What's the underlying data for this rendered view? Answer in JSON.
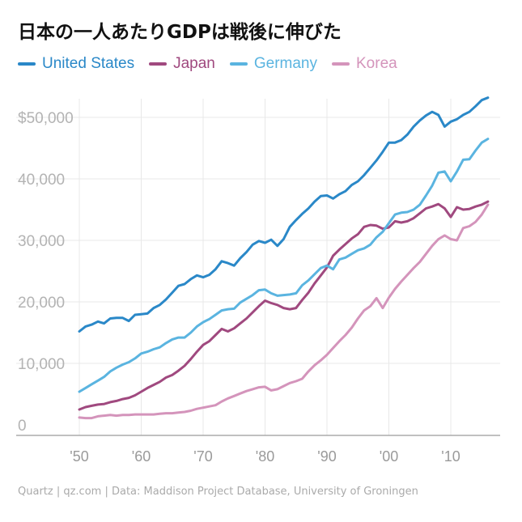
{
  "title": "日本の一人あたりGDPは戦後に伸びた",
  "footer": "Quartz | qz.com | Data: Maddison Project Database, University of Groningen",
  "chart_data": {
    "type": "line",
    "ylim": [
      0,
      55000
    ],
    "xlim": [
      1948,
      2018
    ],
    "yticks": [
      {
        "value": 0,
        "label": "0"
      },
      {
        "value": 10000,
        "label": "10,000"
      },
      {
        "value": 20000,
        "label": "20,000"
      },
      {
        "value": 30000,
        "label": "30,000"
      },
      {
        "value": 40000,
        "label": "40,000"
      },
      {
        "value": 50000,
        "label": "$50,000"
      }
    ],
    "xticks": [
      {
        "value": 1950,
        "label": "'50"
      },
      {
        "value": 1960,
        "label": "'60"
      },
      {
        "value": 1970,
        "label": "'70"
      },
      {
        "value": 1980,
        "label": "'80"
      },
      {
        "value": 1990,
        "label": "'90"
      },
      {
        "value": 2000,
        "label": "'00"
      },
      {
        "value": 2010,
        "label": "'10"
      }
    ],
    "grid": true,
    "legend_position": "top-left",
    "series": [
      {
        "name": "United States",
        "color": "#2a88c8",
        "points": [
          [
            1950,
            15200
          ],
          [
            1951,
            16000
          ],
          [
            1952,
            16300
          ],
          [
            1953,
            16800
          ],
          [
            1954,
            16500
          ],
          [
            1955,
            17300
          ],
          [
            1956,
            17400
          ],
          [
            1957,
            17400
          ],
          [
            1958,
            16900
          ],
          [
            1959,
            17900
          ],
          [
            1960,
            18000
          ],
          [
            1961,
            18100
          ],
          [
            1962,
            19000
          ],
          [
            1963,
            19500
          ],
          [
            1964,
            20400
          ],
          [
            1965,
            21500
          ],
          [
            1966,
            22600
          ],
          [
            1967,
            22900
          ],
          [
            1968,
            23700
          ],
          [
            1969,
            24300
          ],
          [
            1970,
            24000
          ],
          [
            1971,
            24400
          ],
          [
            1972,
            25300
          ],
          [
            1973,
            26600
          ],
          [
            1974,
            26300
          ],
          [
            1975,
            25900
          ],
          [
            1976,
            27100
          ],
          [
            1977,
            28100
          ],
          [
            1978,
            29300
          ],
          [
            1979,
            29900
          ],
          [
            1980,
            29600
          ],
          [
            1981,
            30100
          ],
          [
            1982,
            29100
          ],
          [
            1983,
            30200
          ],
          [
            1984,
            32200
          ],
          [
            1985,
            33300
          ],
          [
            1986,
            34300
          ],
          [
            1987,
            35200
          ],
          [
            1988,
            36300
          ],
          [
            1989,
            37200
          ],
          [
            1990,
            37300
          ],
          [
            1991,
            36800
          ],
          [
            1992,
            37500
          ],
          [
            1993,
            38000
          ],
          [
            1994,
            39000
          ],
          [
            1995,
            39600
          ],
          [
            1996,
            40600
          ],
          [
            1997,
            41800
          ],
          [
            1998,
            43000
          ],
          [
            1999,
            44400
          ],
          [
            2000,
            45900
          ],
          [
            2001,
            45900
          ],
          [
            2002,
            46300
          ],
          [
            2003,
            47200
          ],
          [
            2004,
            48500
          ],
          [
            2005,
            49500
          ],
          [
            2006,
            50300
          ],
          [
            2007,
            50900
          ],
          [
            2008,
            50400
          ],
          [
            2009,
            48500
          ],
          [
            2010,
            49300
          ],
          [
            2011,
            49700
          ],
          [
            2012,
            50400
          ],
          [
            2013,
            50900
          ],
          [
            2014,
            51800
          ],
          [
            2015,
            52800
          ],
          [
            2016,
            53200
          ]
        ]
      },
      {
        "name": "Japan",
        "color": "#a0497f",
        "points": [
          [
            1950,
            2500
          ],
          [
            1951,
            2900
          ],
          [
            1952,
            3100
          ],
          [
            1953,
            3300
          ],
          [
            1954,
            3400
          ],
          [
            1955,
            3700
          ],
          [
            1956,
            3900
          ],
          [
            1957,
            4200
          ],
          [
            1958,
            4400
          ],
          [
            1959,
            4800
          ],
          [
            1960,
            5400
          ],
          [
            1961,
            6000
          ],
          [
            1962,
            6500
          ],
          [
            1963,
            7000
          ],
          [
            1964,
            7700
          ],
          [
            1965,
            8100
          ],
          [
            1966,
            8800
          ],
          [
            1967,
            9600
          ],
          [
            1968,
            10700
          ],
          [
            1969,
            11900
          ],
          [
            1970,
            13000
          ],
          [
            1971,
            13600
          ],
          [
            1972,
            14600
          ],
          [
            1973,
            15600
          ],
          [
            1974,
            15200
          ],
          [
            1975,
            15700
          ],
          [
            1976,
            16500
          ],
          [
            1977,
            17300
          ],
          [
            1978,
            18300
          ],
          [
            1979,
            19300
          ],
          [
            1980,
            20200
          ],
          [
            1981,
            19800
          ],
          [
            1982,
            19500
          ],
          [
            1983,
            19000
          ],
          [
            1984,
            18800
          ],
          [
            1985,
            19000
          ],
          [
            1986,
            20300
          ],
          [
            1987,
            21500
          ],
          [
            1988,
            23000
          ],
          [
            1989,
            24300
          ],
          [
            1990,
            25600
          ],
          [
            1991,
            27500
          ],
          [
            1992,
            28500
          ],
          [
            1993,
            29400
          ],
          [
            1994,
            30300
          ],
          [
            1995,
            31000
          ],
          [
            1996,
            32200
          ],
          [
            1997,
            32500
          ],
          [
            1998,
            32400
          ],
          [
            1999,
            31900
          ],
          [
            2000,
            32100
          ],
          [
            2001,
            33100
          ],
          [
            2002,
            32900
          ],
          [
            2003,
            33100
          ],
          [
            2004,
            33600
          ],
          [
            2005,
            34400
          ],
          [
            2006,
            35200
          ],
          [
            2007,
            35500
          ],
          [
            2008,
            35900
          ],
          [
            2009,
            35200
          ],
          [
            2010,
            33800
          ],
          [
            2011,
            35400
          ],
          [
            2012,
            35000
          ],
          [
            2013,
            35100
          ],
          [
            2014,
            35500
          ],
          [
            2015,
            35800
          ],
          [
            2016,
            36300
          ]
        ]
      },
      {
        "name": "Germany",
        "color": "#5ab4e0",
        "points": [
          [
            1950,
            5400
          ],
          [
            1951,
            6000
          ],
          [
            1952,
            6600
          ],
          [
            1953,
            7200
          ],
          [
            1954,
            7800
          ],
          [
            1955,
            8700
          ],
          [
            1956,
            9300
          ],
          [
            1957,
            9800
          ],
          [
            1958,
            10200
          ],
          [
            1959,
            10800
          ],
          [
            1960,
            11600
          ],
          [
            1961,
            11900
          ],
          [
            1962,
            12300
          ],
          [
            1963,
            12600
          ],
          [
            1964,
            13300
          ],
          [
            1965,
            13900
          ],
          [
            1966,
            14200
          ],
          [
            1967,
            14200
          ],
          [
            1968,
            15000
          ],
          [
            1969,
            16000
          ],
          [
            1970,
            16700
          ],
          [
            1971,
            17200
          ],
          [
            1972,
            17900
          ],
          [
            1973,
            18600
          ],
          [
            1974,
            18800
          ],
          [
            1975,
            18900
          ],
          [
            1976,
            19900
          ],
          [
            1977,
            20500
          ],
          [
            1978,
            21100
          ],
          [
            1979,
            21900
          ],
          [
            1980,
            22000
          ],
          [
            1981,
            21400
          ],
          [
            1982,
            21000
          ],
          [
            1983,
            21100
          ],
          [
            1984,
            21200
          ],
          [
            1985,
            21400
          ],
          [
            1986,
            22700
          ],
          [
            1987,
            23500
          ],
          [
            1988,
            24500
          ],
          [
            1989,
            25500
          ],
          [
            1990,
            25900
          ],
          [
            1991,
            25300
          ],
          [
            1992,
            26900
          ],
          [
            1993,
            27200
          ],
          [
            1994,
            27800
          ],
          [
            1995,
            28400
          ],
          [
            1996,
            28700
          ],
          [
            1997,
            29300
          ],
          [
            1998,
            30500
          ],
          [
            1999,
            31400
          ],
          [
            2000,
            32800
          ],
          [
            2001,
            34200
          ],
          [
            2002,
            34500
          ],
          [
            2003,
            34600
          ],
          [
            2004,
            35000
          ],
          [
            2005,
            35800
          ],
          [
            2006,
            37300
          ],
          [
            2007,
            38900
          ],
          [
            2008,
            41000
          ],
          [
            2009,
            41200
          ],
          [
            2010,
            39600
          ],
          [
            2011,
            41200
          ],
          [
            2012,
            43100
          ],
          [
            2013,
            43200
          ],
          [
            2014,
            44600
          ],
          [
            2015,
            45900
          ],
          [
            2016,
            46500
          ]
        ]
      },
      {
        "name": "Korea",
        "color": "#d494bb",
        "points": [
          [
            1950,
            1200
          ],
          [
            1951,
            1100
          ],
          [
            1952,
            1100
          ],
          [
            1953,
            1400
          ],
          [
            1954,
            1500
          ],
          [
            1955,
            1600
          ],
          [
            1956,
            1500
          ],
          [
            1957,
            1600
          ],
          [
            1958,
            1600
          ],
          [
            1959,
            1700
          ],
          [
            1960,
            1700
          ],
          [
            1961,
            1700
          ],
          [
            1962,
            1700
          ],
          [
            1963,
            1800
          ],
          [
            1964,
            1900
          ],
          [
            1965,
            1900
          ],
          [
            1966,
            2000
          ],
          [
            1967,
            2100
          ],
          [
            1968,
            2300
          ],
          [
            1969,
            2600
          ],
          [
            1970,
            2800
          ],
          [
            1971,
            3000
          ],
          [
            1972,
            3200
          ],
          [
            1973,
            3800
          ],
          [
            1974,
            4300
          ],
          [
            1975,
            4700
          ],
          [
            1976,
            5100
          ],
          [
            1977,
            5500
          ],
          [
            1978,
            5800
          ],
          [
            1979,
            6100
          ],
          [
            1980,
            6200
          ],
          [
            1981,
            5600
          ],
          [
            1982,
            5800
          ],
          [
            1983,
            6300
          ],
          [
            1984,
            6800
          ],
          [
            1985,
            7100
          ],
          [
            1986,
            7500
          ],
          [
            1987,
            8700
          ],
          [
            1988,
            9700
          ],
          [
            1989,
            10500
          ],
          [
            1990,
            11400
          ],
          [
            1991,
            12500
          ],
          [
            1992,
            13600
          ],
          [
            1993,
            14600
          ],
          [
            1994,
            15800
          ],
          [
            1995,
            17300
          ],
          [
            1996,
            18600
          ],
          [
            1997,
            19300
          ],
          [
            1998,
            20600
          ],
          [
            1999,
            19000
          ],
          [
            2000,
            20700
          ],
          [
            2001,
            22100
          ],
          [
            2002,
            23300
          ],
          [
            2003,
            24400
          ],
          [
            2004,
            25500
          ],
          [
            2005,
            26500
          ],
          [
            2006,
            27800
          ],
          [
            2007,
            29100
          ],
          [
            2008,
            30200
          ],
          [
            2009,
            30800
          ],
          [
            2010,
            30200
          ],
          [
            2011,
            30000
          ],
          [
            2012,
            32000
          ],
          [
            2013,
            32300
          ],
          [
            2014,
            33000
          ],
          [
            2015,
            34200
          ],
          [
            2016,
            35800
          ]
        ]
      }
    ]
  }
}
